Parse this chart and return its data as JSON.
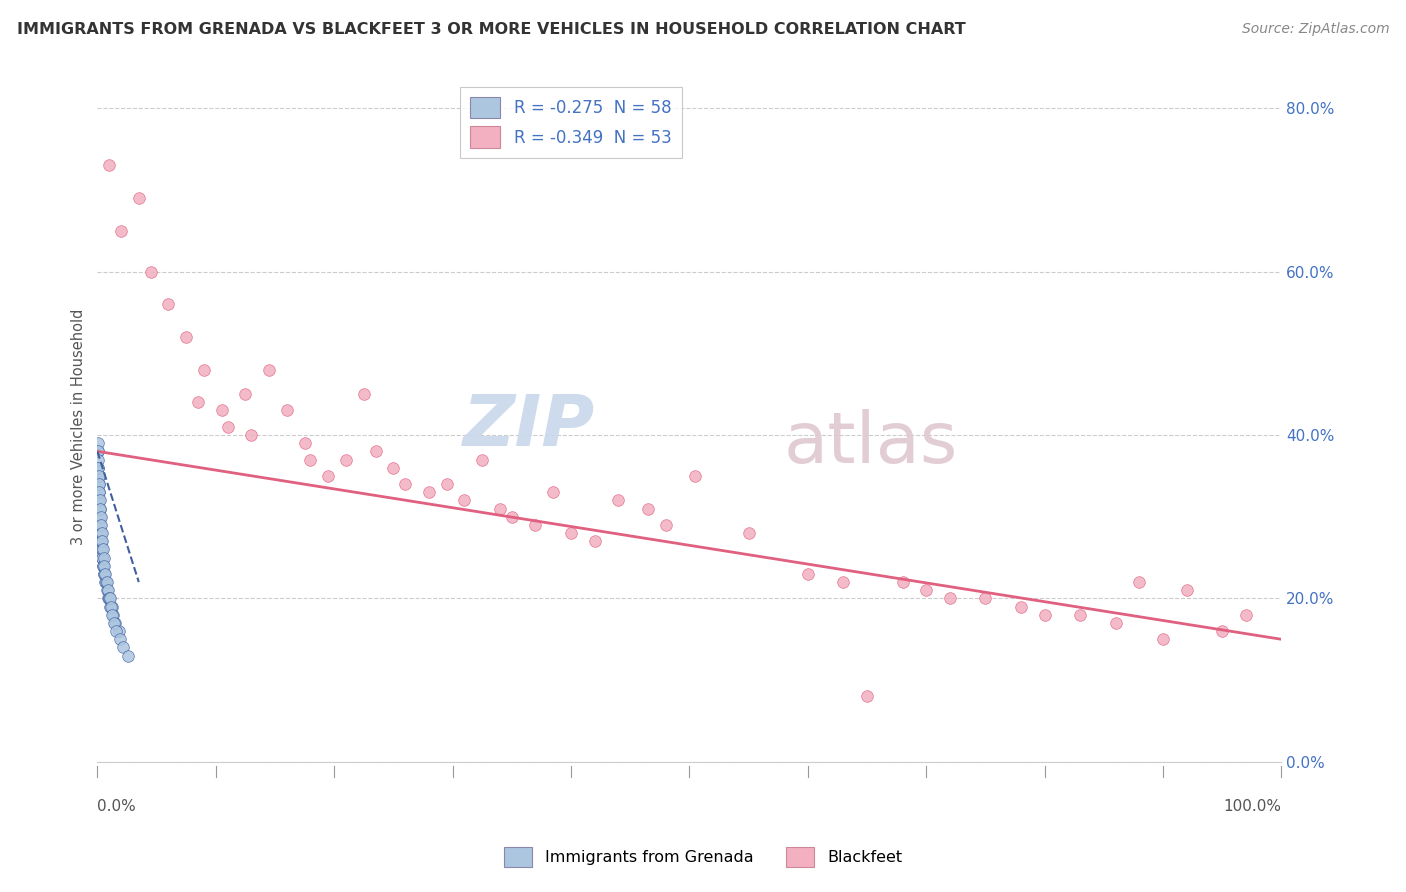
{
  "title": "IMMIGRANTS FROM GRENADA VS BLACKFEET 3 OR MORE VEHICLES IN HOUSEHOLD CORRELATION CHART",
  "source": "Source: ZipAtlas.com",
  "ylabel": "3 or more Vehicles in Household",
  "legend1_label": "Immigrants from Grenada",
  "legend2_label": "Blackfeet",
  "r1": -0.275,
  "n1": 58,
  "r2": -0.349,
  "n2": 53,
  "color1": "#adc6e0",
  "color2": "#f2b0c0",
  "line1_color": "#4060a0",
  "line2_color": "#e06080",
  "watermark_zip_color": "#c8d8ec",
  "watermark_atlas_color": "#e0c8d0",
  "title_color": "#333333",
  "source_color": "#888888",
  "yaxis_tick_color": "#4472c4",
  "grid_color": "#cccccc",
  "blue_x": [
    0.05,
    0.08,
    0.1,
    0.12,
    0.15,
    0.18,
    0.2,
    0.22,
    0.25,
    0.28,
    0.3,
    0.33,
    0.35,
    0.38,
    0.4,
    0.42,
    0.45,
    0.5,
    0.55,
    0.6,
    0.65,
    0.7,
    0.8,
    0.9,
    1.0,
    1.1,
    1.2,
    1.3,
    1.5,
    1.8,
    0.05,
    0.06,
    0.07,
    0.09,
    0.11,
    0.13,
    0.16,
    0.19,
    0.23,
    0.27,
    0.31,
    0.36,
    0.41,
    0.46,
    0.52,
    0.58,
    0.68,
    0.78,
    0.88,
    0.98,
    1.05,
    1.15,
    1.25,
    1.4,
    1.6,
    1.9,
    2.2,
    2.6
  ],
  "blue_y": [
    38,
    36,
    35,
    34,
    33,
    32,
    31,
    30,
    29,
    28,
    27,
    27,
    26,
    26,
    25,
    25,
    24,
    24,
    23,
    23,
    22,
    22,
    21,
    20,
    20,
    19,
    19,
    18,
    17,
    16,
    39,
    38,
    37,
    36,
    35,
    34,
    33,
    32,
    31,
    30,
    29,
    28,
    27,
    26,
    25,
    24,
    23,
    22,
    21,
    20,
    20,
    19,
    18,
    17,
    16,
    15,
    14,
    13
  ],
  "pink_x": [
    1.0,
    2.0,
    3.5,
    4.5,
    6.0,
    7.5,
    8.5,
    9.0,
    10.5,
    11.0,
    12.5,
    13.0,
    14.5,
    16.0,
    17.5,
    18.0,
    19.5,
    21.0,
    22.5,
    23.5,
    25.0,
    26.0,
    28.0,
    29.5,
    31.0,
    32.5,
    34.0,
    35.0,
    37.0,
    38.5,
    40.0,
    42.0,
    44.0,
    46.5,
    48.0,
    50.5,
    55.0,
    60.0,
    63.0,
    65.0,
    68.0,
    70.0,
    72.0,
    75.0,
    78.0,
    80.0,
    83.0,
    86.0,
    88.0,
    90.0,
    92.0,
    95.0,
    97.0
  ],
  "pink_y": [
    73,
    65,
    69,
    60,
    56,
    52,
    44,
    48,
    43,
    41,
    45,
    40,
    48,
    43,
    39,
    37,
    35,
    37,
    45,
    38,
    36,
    34,
    33,
    34,
    32,
    37,
    31,
    30,
    29,
    33,
    28,
    27,
    32,
    31,
    29,
    35,
    28,
    23,
    22,
    8,
    22,
    21,
    20,
    20,
    19,
    18,
    18,
    17,
    22,
    15,
    21,
    16,
    18
  ],
  "xlim": [
    0,
    100
  ],
  "ylim": [
    0,
    82
  ],
  "yticks": [
    0,
    20,
    40,
    60,
    80
  ],
  "pink_line_x0": 0,
  "pink_line_x1": 100,
  "pink_line_y0": 38,
  "pink_line_y1": 15,
  "blue_line_x0": 0,
  "blue_line_x1": 3.5,
  "blue_line_y0": 38,
  "blue_line_y1": 22
}
